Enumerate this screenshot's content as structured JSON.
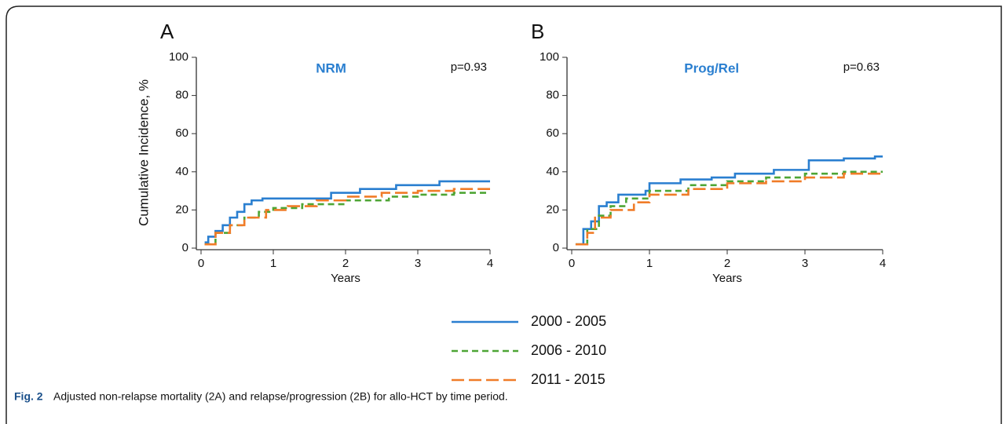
{
  "chart_data": [
    {
      "type": "line",
      "step": true,
      "panel_label": "A",
      "title": "NRM",
      "annotation": "p=0.93",
      "x_label": "Years",
      "y_label": "Cumulative Incidence, %",
      "xlim": [
        0,
        4
      ],
      "xticks": [
        0,
        1,
        2,
        3,
        4
      ],
      "ylim": [
        0,
        100
      ],
      "yticks": [
        0,
        20,
        40,
        60,
        80,
        100
      ],
      "series": [
        {
          "name": "2000 - 2005",
          "color": "#2a7fd0",
          "dash": "none",
          "x": [
            0.05,
            0.1,
            0.2,
            0.3,
            0.4,
            0.5,
            0.6,
            0.7,
            0.85,
            1.5,
            1.8,
            2.2,
            2.7,
            3.3,
            4
          ],
          "values": [
            3,
            6,
            9,
            12,
            16,
            19,
            23,
            25,
            26,
            26,
            29,
            31,
            33,
            35,
            35
          ]
        },
        {
          "name": "2006 - 2010",
          "color": "#4ea535",
          "dash": "8,5",
          "x": [
            0.05,
            0.2,
            0.4,
            0.6,
            0.8,
            1.0,
            1.4,
            1.8,
            2.0,
            2.6,
            3.0,
            3.5,
            4
          ],
          "values": [
            2,
            8,
            12,
            16,
            19,
            21,
            23,
            23,
            25,
            27,
            28,
            29,
            29
          ]
        },
        {
          "name": "2011 - 2015",
          "color": "#f07c28",
          "dash": "16,6",
          "x": [
            0.05,
            0.2,
            0.4,
            0.6,
            0.9,
            1.2,
            1.6,
            2.0,
            2.5,
            3.0,
            3.5,
            4
          ],
          "values": [
            2,
            8,
            12,
            16,
            20,
            22,
            25,
            27,
            29,
            30,
            31,
            31
          ]
        }
      ]
    },
    {
      "type": "line",
      "step": true,
      "panel_label": "B",
      "title": "Prog/Rel",
      "annotation": "p=0.63",
      "x_label": "Years",
      "xlim": [
        0,
        4
      ],
      "xticks": [
        0,
        1,
        2,
        3,
        4
      ],
      "ylim": [
        0,
        100
      ],
      "yticks": [
        0,
        20,
        40,
        60,
        80,
        100
      ],
      "series": [
        {
          "name": "2000 - 2005",
          "color": "#2a7fd0",
          "dash": "none",
          "x": [
            0.05,
            0.15,
            0.25,
            0.35,
            0.45,
            0.6,
            0.95,
            1.0,
            1.4,
            1.8,
            2.1,
            2.6,
            3.05,
            3.5,
            3.9,
            4
          ],
          "values": [
            2,
            10,
            14,
            22,
            24,
            28,
            30,
            34,
            36,
            37,
            39,
            41,
            46,
            47,
            48,
            48
          ]
        },
        {
          "name": "2006 - 2010",
          "color": "#4ea535",
          "dash": "8,5",
          "x": [
            0.05,
            0.2,
            0.35,
            0.5,
            0.7,
            1.0,
            1.5,
            2.0,
            2.5,
            3.0,
            3.5,
            4
          ],
          "values": [
            2,
            10,
            17,
            22,
            26,
            30,
            33,
            35,
            37,
            39,
            40,
            40
          ]
        },
        {
          "name": "2011 - 2015",
          "color": "#f07c28",
          "dash": "16,6",
          "x": [
            0.05,
            0.2,
            0.3,
            0.5,
            0.8,
            1.0,
            1.5,
            2.0,
            2.5,
            3.0,
            3.5,
            4
          ],
          "values": [
            2,
            8,
            16,
            20,
            24,
            28,
            31,
            34,
            35,
            37,
            39,
            40
          ]
        }
      ]
    }
  ],
  "caption": {
    "label": "Fig. 2",
    "text": "Adjusted non-relapse mortality (2A) and relapse/progression (2B) for allo-HCT by time period."
  }
}
